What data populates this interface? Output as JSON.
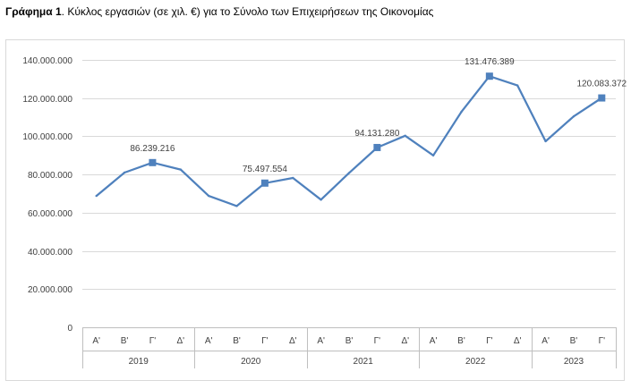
{
  "caption": {
    "label": "Γράφημα 1",
    "text": ". Κύκλος εργασιών (σε χιλ. €) για το Σύνολο των Επιχειρήσεων της Οικονομίας"
  },
  "colors": {
    "line": "#4f81bd",
    "grid": "#d9d9d9",
    "axis": "#bfbfbf",
    "border": "#d9d9d9"
  },
  "chart_data": {
    "type": "line",
    "title": "",
    "xlabel": "",
    "ylabel": "",
    "ylim": [
      0,
      140000000
    ],
    "ytick_step": 20000000,
    "y_tick_labels": [
      "0",
      "20.000.000",
      "40.000.000",
      "60.000.000",
      "80.000.000",
      "100.000.000",
      "120.000.000",
      "140.000.000"
    ],
    "grid": true,
    "years": [
      {
        "label": "2019",
        "quarters": [
          "Α'",
          "Β'",
          "Γ'",
          "Δ'"
        ]
      },
      {
        "label": "2020",
        "quarters": [
          "Α'",
          "Β'",
          "Γ'",
          "Δ'"
        ]
      },
      {
        "label": "2021",
        "quarters": [
          "Α'",
          "Β'",
          "Γ'",
          "Δ'"
        ]
      },
      {
        "label": "2022",
        "quarters": [
          "Α'",
          "Β'",
          "Γ'",
          "Δ'"
        ]
      },
      {
        "label": "2023",
        "quarters": [
          "Α'",
          "Β'",
          "Γ'"
        ]
      }
    ],
    "series": [
      {
        "values": [
          68800000,
          81000000,
          86239216,
          82600000,
          68800000,
          63500000,
          75497554,
          78200000,
          66800000,
          80800000,
          94131280,
          100300000,
          90000000,
          112800000,
          131476389,
          126600000,
          97400000,
          110400000,
          120083372
        ]
      }
    ],
    "annotations": [
      {
        "index": 2,
        "label": "86.239.216"
      },
      {
        "index": 6,
        "label": "75.497.554"
      },
      {
        "index": 10,
        "label": "94.131.280"
      },
      {
        "index": 14,
        "label": "131.476.389"
      },
      {
        "index": 18,
        "label": "120.083.372"
      }
    ]
  }
}
